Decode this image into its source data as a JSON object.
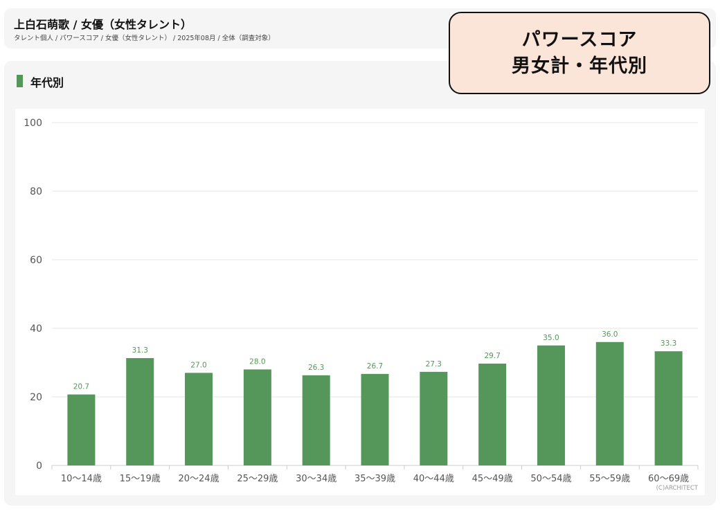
{
  "header": {
    "title": "上白石萌歌 / 女優（女性タレント）",
    "breadcrumb": "タレント個人 / パワースコア / 女優（女性タレント） / 2025年08月 / 全体（調査対象）"
  },
  "section": {
    "title": "年代別"
  },
  "overlay": {
    "line1": "パワースコア",
    "line2": "男女計・年代別"
  },
  "copyright": "(C)ARCHITECT",
  "colors": {
    "bar": "#55965a",
    "label": "#55965a",
    "marker": "#55965a",
    "overlay_bg": "#fbe4d8"
  },
  "chart_data": {
    "type": "bar",
    "categories": [
      "10〜14歳",
      "15〜19歳",
      "20〜24歳",
      "25〜29歳",
      "30〜34歳",
      "35〜39歳",
      "40〜44歳",
      "45〜49歳",
      "50〜54歳",
      "55〜59歳",
      "60〜69歳"
    ],
    "values": [
      20.7,
      31.3,
      27.0,
      28.0,
      26.3,
      26.7,
      27.3,
      29.7,
      35.0,
      36.0,
      33.3
    ],
    "value_labels": [
      "20.7",
      "31.3",
      "27.0",
      "28.0",
      "26.3",
      "26.7",
      "27.3",
      "29.7",
      "35.0",
      "36.0",
      "33.3"
    ],
    "yticks": [
      0,
      20,
      40,
      60,
      80,
      100
    ],
    "ylim": [
      0,
      100
    ],
    "grid": true,
    "title": "",
    "xlabel": "",
    "ylabel": ""
  }
}
